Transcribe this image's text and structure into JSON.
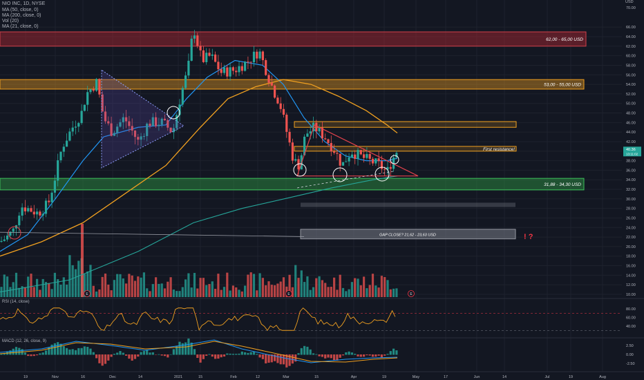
{
  "header": {
    "symbol_line": "NIO INC, 1D, NYSE",
    "indicators": [
      "MA (50, close, 0)",
      "MA (200, close, 0)",
      "Vol (20)",
      "MA (21, close, 0)"
    ],
    "currency": "USD"
  },
  "chart_data": {
    "type": "candlestick",
    "price_axis": {
      "ticks": [
        "70.00",
        "66.00",
        "64.00",
        "62.00",
        "60.00",
        "58.00",
        "56.00",
        "54.00",
        "52.00",
        "50.00",
        "48.00",
        "46.00",
        "44.00",
        "42.00",
        "40.00",
        "38.00",
        "36.00",
        "34.00",
        "32.00",
        "30.00",
        "28.00",
        "26.00",
        "24.00",
        "22.00",
        "20.00",
        "18.00",
        "16.00",
        "14.00",
        "12.00",
        "10.00"
      ],
      "current_price": "40.36",
      "current_sub": "13:11:02"
    },
    "time_axis": {
      "labels": [
        "19",
        "Nov",
        "16",
        "Dec",
        "14",
        "2021",
        "15",
        "Feb",
        "12",
        "Mar",
        "15",
        "Apr",
        "19",
        "May",
        "17",
        "Jun",
        "14",
        "Jul",
        "19",
        "Aug"
      ]
    },
    "zones": [
      {
        "label": "62,00 - 65,00 USD",
        "color": "#b22833"
      },
      {
        "label": "53,00 - 55,00 USD",
        "color": "#f0a020"
      },
      {
        "label": "First resistance!",
        "color": "#f0a020"
      },
      {
        "label": "31,88 - 34,30 USD",
        "color": "#2e9b44"
      },
      {
        "label": "GAP CLOSE? 21,62 - 23,63 USD",
        "color": "#787b86"
      }
    ],
    "annotation_marks": "! ?",
    "earnings_markers": [
      "E",
      "E",
      "E"
    ],
    "rsi": {
      "title": "RSI (14, close)",
      "ticks": [
        "80.00",
        "60.00",
        "40.00"
      ]
    },
    "macd": {
      "title": "MACD (12, 26, close, 9)",
      "ticks": [
        "2.50",
        "0.00",
        "-2.50"
      ]
    },
    "colors": {
      "up": "#26a69a",
      "down": "#ef5350",
      "ma50": "#2196f3",
      "ma200": "#f0a020",
      "ma21": "#26a69a",
      "rsi": "#f0a020"
    }
  }
}
